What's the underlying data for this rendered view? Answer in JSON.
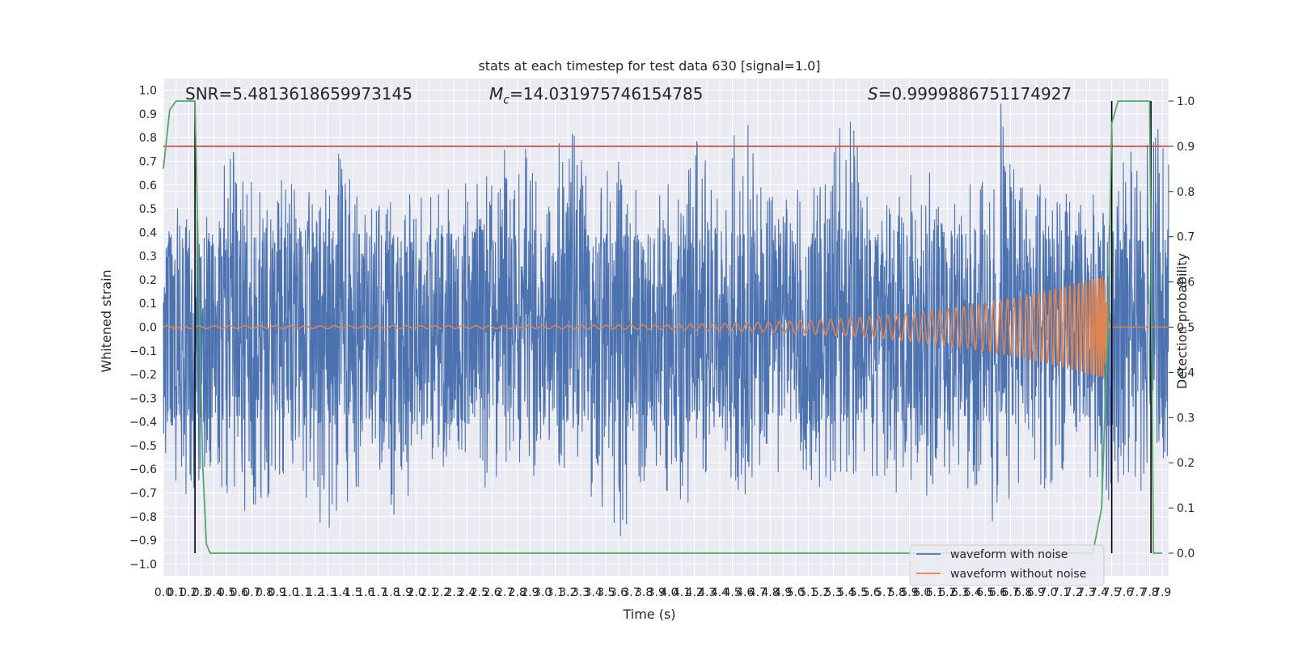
{
  "chart_data": {
    "type": "line",
    "title": "stats at each timestep for test data 630 [signal=1.0]",
    "xlabel": "Time (s)",
    "ylabel": "Whitened strain",
    "ylabel_right": "Detection probability",
    "xlim": [
      0.0,
      7.95
    ],
    "ylim": [
      -1.05,
      1.05
    ],
    "ylim_right": [
      -0.05,
      1.05
    ],
    "x_ticks": [
      0.0,
      0.1,
      0.2,
      0.3,
      0.4,
      0.5,
      0.6,
      0.7,
      0.8,
      0.9,
      1.0,
      1.1,
      1.2,
      1.3,
      1.4,
      1.5,
      1.6,
      1.7,
      1.8,
      1.9,
      2.0,
      2.1,
      2.2,
      2.3,
      2.4,
      2.5,
      2.6,
      2.7,
      2.8,
      2.9,
      3.0,
      3.1,
      3.2,
      3.3,
      3.4,
      3.5,
      3.6,
      3.7,
      3.8,
      3.9,
      4.0,
      4.1,
      4.2,
      4.3,
      4.4,
      4.5,
      4.6,
      4.7,
      4.8,
      4.9,
      5.0,
      5.1,
      5.2,
      5.3,
      5.4,
      5.5,
      5.6,
      5.7,
      5.8,
      5.9,
      6.0,
      6.1,
      6.2,
      6.3,
      6.4,
      6.5,
      6.6,
      6.7,
      6.8,
      6.9,
      7.0,
      7.1,
      7.2,
      7.3,
      7.4,
      7.5,
      7.6,
      7.7,
      7.8,
      7.9
    ],
    "y_ticks": [
      -1.0,
      -0.9,
      -0.8,
      -0.7,
      -0.6,
      -0.5,
      -0.4,
      -0.3,
      -0.2,
      -0.1,
      0.0,
      0.1,
      0.2,
      0.3,
      0.4,
      0.5,
      0.6,
      0.7,
      0.8,
      0.9,
      1.0
    ],
    "y_ticks_right": [
      0.0,
      0.1,
      0.2,
      0.3,
      0.4,
      0.5,
      0.6,
      0.7,
      0.8,
      0.9,
      1.0
    ],
    "annotations": {
      "snr": "SNR=5.4813618659973145",
      "mc_symbol": "M",
      "mc_sub": "c",
      "mc_value": "=14.031975746154785",
      "s_symbol": "S",
      "s_value": "=0.9999886751174927"
    },
    "threshold": {
      "value": 0.9,
      "axis": "right",
      "color": "#c44e52"
    },
    "vertical_lines": [
      0.25,
      7.5,
      7.81
    ],
    "noise_envelope": {
      "x": [
        0.0,
        0.2,
        0.4,
        0.6,
        0.8,
        1.0,
        1.2,
        1.4,
        1.6,
        1.8,
        2.0,
        2.2,
        2.4,
        2.6,
        2.8,
        3.0,
        3.2,
        3.4,
        3.6,
        3.8,
        4.0,
        4.2,
        4.4,
        4.6,
        4.8,
        5.0,
        5.2,
        5.4,
        5.6,
        5.8,
        6.0,
        6.2,
        6.4,
        6.6,
        6.8,
        7.0,
        7.2,
        7.4,
        7.6,
        7.8,
        7.95
      ],
      "upper": [
        0.45,
        0.55,
        0.62,
        0.8,
        0.62,
        0.64,
        0.55,
        0.78,
        0.5,
        0.6,
        0.55,
        0.58,
        0.62,
        0.7,
        0.83,
        0.6,
        0.88,
        0.62,
        0.7,
        0.6,
        0.65,
        0.83,
        0.6,
        1.0,
        0.55,
        0.62,
        0.6,
        0.94,
        0.6,
        0.58,
        0.7,
        0.6,
        0.62,
        1.0,
        0.6,
        0.62,
        0.55,
        0.6,
        0.7,
        0.93,
        0.8
      ],
      "lower": [
        -0.58,
        -0.74,
        -0.65,
        -0.78,
        -0.77,
        -0.6,
        -0.85,
        -0.89,
        -0.62,
        -0.81,
        -0.7,
        -0.6,
        -0.65,
        -0.72,
        -0.6,
        -0.68,
        -0.6,
        -0.75,
        -0.93,
        -0.65,
        -0.7,
        -0.78,
        -0.6,
        -0.72,
        -0.65,
        -0.6,
        -0.7,
        -0.62,
        -0.66,
        -0.71,
        -0.75,
        -0.68,
        -0.72,
        -0.87,
        -0.65,
        -0.7,
        -0.6,
        -0.82,
        -0.65,
        -0.72,
        -0.58
      ]
    },
    "series": [
      {
        "name": "waveform with noise",
        "color": "#4c72b0"
      },
      {
        "name": "waveform without noise",
        "color": "#dd8452",
        "chirp": {
          "t_merge": 7.44,
          "t_end": 7.48,
          "amp_start": 0.006,
          "amp_peak": 0.22,
          "f_start": 8,
          "f_end": 60
        }
      },
      {
        "name": "Detection probability",
        "color": "#55a868",
        "axis": "right",
        "x": [
          0.0,
          0.05,
          0.1,
          0.15,
          0.2,
          0.25,
          0.28,
          0.31,
          0.34,
          0.37,
          7.0,
          7.35,
          7.42,
          7.47,
          7.5,
          7.55,
          7.6,
          7.8,
          7.83,
          7.86,
          7.9
        ],
        "y": [
          0.85,
          0.98,
          1.0,
          1.0,
          1.0,
          1.0,
          0.6,
          0.2,
          0.02,
          0.0,
          0.0,
          0.0,
          0.1,
          0.5,
          0.95,
          1.0,
          1.0,
          1.0,
          0.0,
          0.0,
          0.0
        ]
      }
    ],
    "legend": {
      "position": "bottom-right",
      "entries": [
        "waveform with noise",
        "waveform without noise"
      ]
    }
  }
}
